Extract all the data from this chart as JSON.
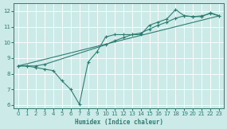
{
  "xlabel": "Humidex (Indice chaleur)",
  "ylabel": "",
  "bg_color": "#cceae8",
  "grid_color": "#ffffff",
  "line_color": "#2e7d72",
  "xlim": [
    -0.5,
    23.5
  ],
  "ylim": [
    5.8,
    12.5
  ],
  "xticks": [
    0,
    1,
    2,
    3,
    4,
    5,
    6,
    7,
    8,
    9,
    10,
    11,
    12,
    13,
    14,
    15,
    16,
    17,
    18,
    19,
    20,
    21,
    22,
    23
  ],
  "yticks": [
    6,
    7,
    8,
    9,
    10,
    11,
    12
  ],
  "line1_x": [
    0,
    1,
    2,
    3,
    4,
    5,
    6,
    7,
    8,
    9,
    10,
    11,
    12,
    13,
    14,
    15,
    16,
    17,
    18,
    19,
    20,
    21,
    22,
    23
  ],
  "line1_y": [
    8.5,
    8.5,
    8.4,
    8.3,
    8.2,
    7.55,
    7.0,
    6.05,
    8.75,
    9.4,
    10.35,
    10.5,
    10.5,
    10.5,
    10.5,
    11.1,
    11.3,
    11.5,
    12.1,
    11.7,
    11.65,
    11.65,
    11.9,
    11.7
  ],
  "line2_x": [
    0,
    1,
    2,
    3,
    10,
    11,
    12,
    13,
    14,
    15,
    16,
    17,
    18,
    19,
    20,
    21,
    22,
    23
  ],
  "line2_y": [
    8.5,
    8.5,
    8.5,
    8.6,
    9.85,
    10.1,
    10.3,
    10.5,
    10.6,
    10.85,
    11.1,
    11.3,
    11.55,
    11.7,
    11.65,
    11.7,
    11.85,
    11.7
  ],
  "line3_x": [
    0,
    23
  ],
  "line3_y": [
    8.5,
    11.7
  ]
}
